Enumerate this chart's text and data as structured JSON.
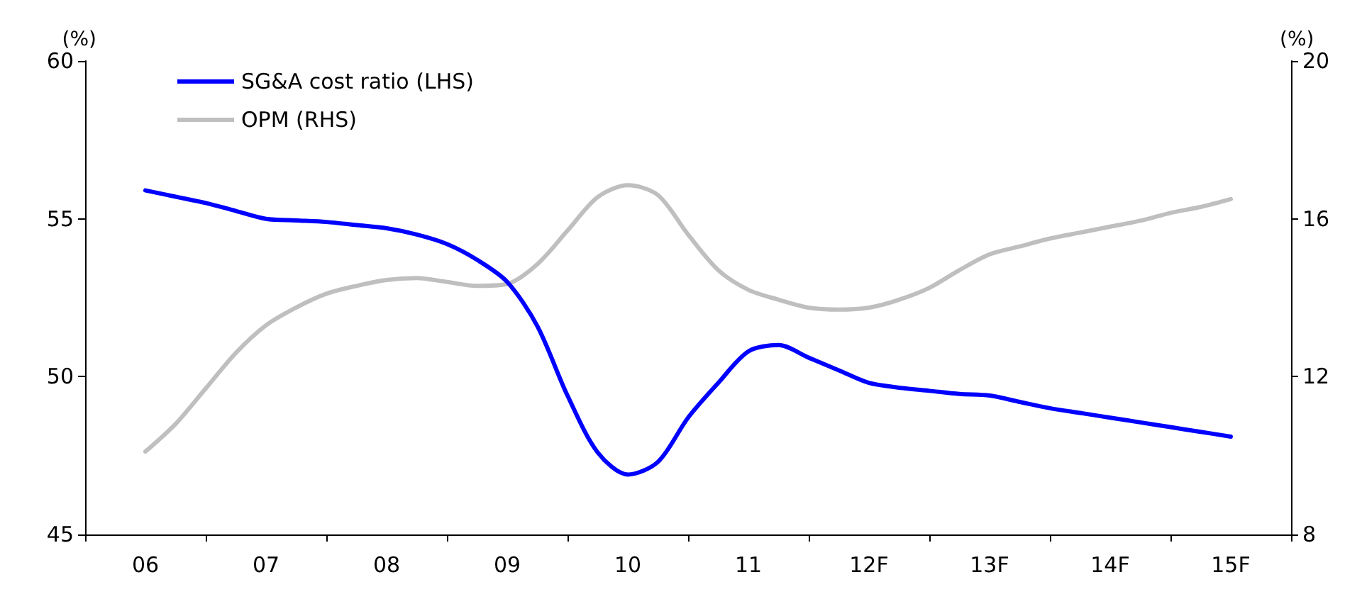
{
  "chart_data": {
    "type": "line",
    "ylabel": "(%)",
    "y2label": "(%)",
    "categories": [
      null,
      null,
      "06",
      null,
      null,
      null,
      "07",
      null,
      null,
      null,
      "08",
      null,
      null,
      null,
      "09",
      null,
      null,
      null,
      "10",
      null,
      null,
      null,
      "11",
      null,
      null,
      null,
      "12F",
      null,
      null,
      null,
      "13F",
      null,
      null,
      null,
      "14F",
      null,
      null,
      null,
      "15F",
      null,
      null
    ],
    "ylim": [
      45,
      60
    ],
    "yticks": [
      45,
      50,
      55,
      60
    ],
    "y2lim": [
      8,
      20
    ],
    "y2ticks": [
      8,
      12,
      16,
      20
    ],
    "legend": "top left",
    "grid": false,
    "marker": "none",
    "line_style": "solid",
    "series": [
      {
        "name": "SG&A cost ratio (LHS)",
        "color": "#0000ff",
        "values": [
          null,
          null,
          55.9,
          55.7,
          55.5,
          55.25,
          55.0,
          54.95,
          54.9,
          54.8,
          54.7,
          54.5,
          54.2,
          53.7,
          53.0,
          51.6,
          49.4,
          47.6,
          46.9,
          47.3,
          48.7,
          49.8,
          50.8,
          51.0,
          50.6,
          50.2,
          49.8,
          49.65,
          49.55,
          49.45,
          49.4,
          49.2,
          49.0,
          48.85,
          48.7,
          48.55,
          48.4,
          48.25,
          48.1,
          null,
          null
        ]
      },
      {
        "name": "OPM (RHS)",
        "color": "#bfbfbf",
        "axis": "y2",
        "values": [
          null,
          null,
          10.1,
          10.8,
          11.7,
          12.6,
          13.3,
          13.75,
          14.1,
          14.3,
          14.45,
          14.5,
          14.4,
          14.3,
          14.35,
          14.85,
          15.7,
          16.55,
          16.85,
          16.6,
          15.6,
          14.7,
          14.2,
          13.95,
          13.75,
          13.7,
          13.75,
          13.95,
          14.25,
          14.7,
          15.1,
          15.3,
          15.5,
          15.65,
          15.8,
          15.95,
          16.15,
          16.3,
          16.5,
          null,
          null
        ]
      }
    ]
  }
}
